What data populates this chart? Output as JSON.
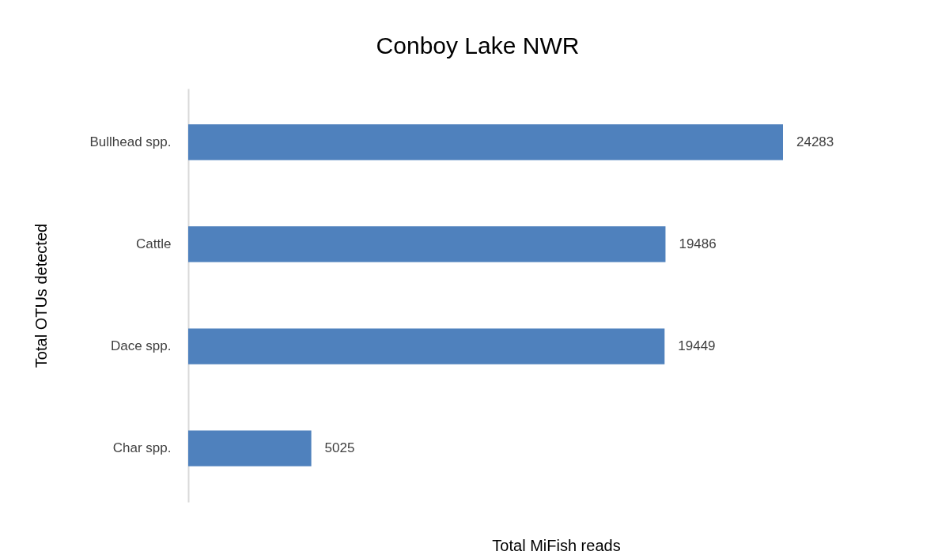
{
  "chart_data": {
    "type": "bar",
    "orientation": "horizontal",
    "title": "Conboy Lake NWR",
    "xlabel": "Total MiFish reads",
    "ylabel": "Total OTUs detected",
    "categories": [
      "Bullhead spp.",
      "Cattle",
      "Dace spp.",
      "Char spp."
    ],
    "values": [
      24283,
      19486,
      19449,
      5025
    ],
    "color": "#4f81bd",
    "data_labels": true
  }
}
